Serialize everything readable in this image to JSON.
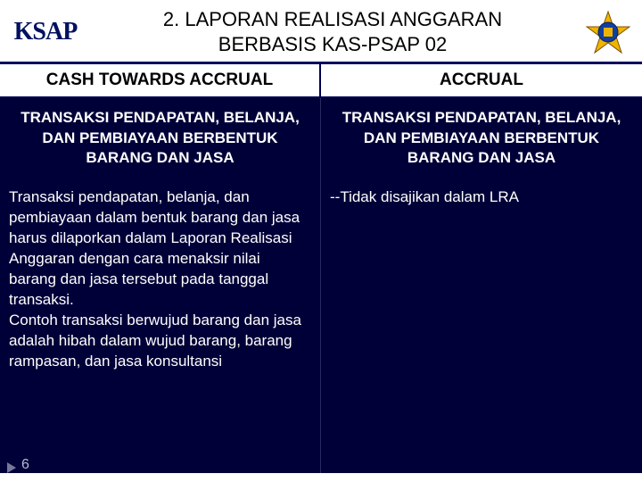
{
  "header": {
    "logo_left_text": "KSAP",
    "title_line1": "2. LAPORAN REALISASI ANGGARAN",
    "title_line2": "BERBASIS KAS-PSAP 02"
  },
  "table": {
    "col_headers": [
      "CASH TOWARDS ACCRUAL",
      "ACCRUAL"
    ],
    "sub_headers": [
      "TRANSAKSI PENDAPATAN, BELANJA, DAN PEMBIAYAAN BERBENTUK BARANG DAN JASA",
      "TRANSAKSI PENDAPATAN, BELANJA, DAN PEMBIAYAAN BERBENTUK BARANG DAN JASA"
    ],
    "body": [
      "Transaksi pendapatan, belanja, dan pembiayaan dalam bentuk barang dan jasa harus dilaporkan dalam Laporan Realisasi Anggaran dengan cara menaksir nilai barang dan jasa tersebut pada tanggal transaksi.\nContoh transaksi berwujud barang dan jasa adalah hibah dalam wujud barang, barang rampasan, dan jasa konsultansi",
      "--Tidak disajikan dalam LRA"
    ]
  },
  "colors": {
    "dark_navy": "#000038",
    "header_rule": "#000060",
    "white": "#ffffff",
    "logo_gold": "#f0b400",
    "logo_blue": "#1040a0"
  },
  "page_number": "6"
}
